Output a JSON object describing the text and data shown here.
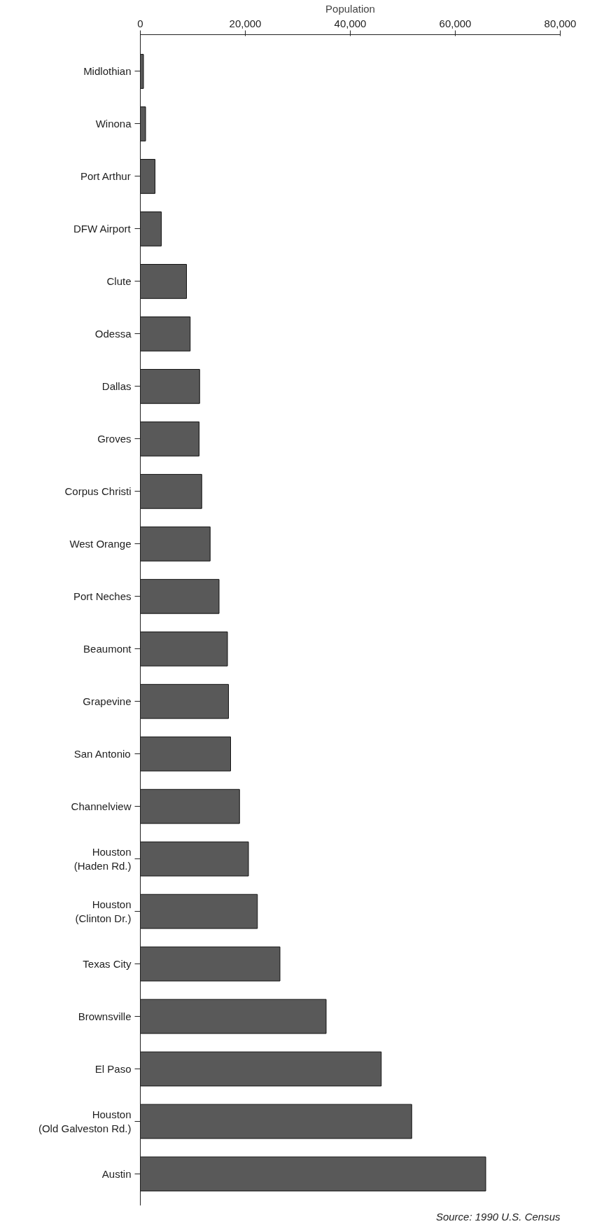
{
  "chart_data": {
    "type": "bar",
    "orientation": "horizontal",
    "xlabel": "Population",
    "categories": [
      "Midlothian",
      "Winona",
      "Port Arthur",
      "DFW Airport",
      "Clute",
      "Odessa",
      "Dallas",
      "Groves",
      "Corpus Christi",
      "West Orange",
      "Port Neches",
      "Beaumont",
      "Grapevine",
      "San Antonio",
      "Channelview",
      "Houston (Haden Rd.)",
      "Houston (Clinton Dr.)",
      "Texas City",
      "Brownsville",
      "El Paso",
      "Houston (Old Galveston Rd.)",
      "Austin"
    ],
    "values": [
      600,
      1000,
      2800,
      4000,
      8800,
      9500,
      11300,
      11200,
      11700,
      13300,
      15000,
      16600,
      16800,
      17200,
      18900,
      20600,
      22300,
      26600,
      35400,
      45900,
      51700,
      65800
    ],
    "color": "#595959",
    "xlim": [
      0,
      80000
    ],
    "xticks": [
      {
        "value": 0,
        "label": "0"
      },
      {
        "value": 20000,
        "label": "20,000"
      },
      {
        "value": 40000,
        "label": "40,000"
      },
      {
        "value": 60000,
        "label": "60,000"
      },
      {
        "value": 80000,
        "label": "80,000"
      }
    ],
    "annotations": [
      "Source: 1990 U.S. Census"
    ]
  }
}
